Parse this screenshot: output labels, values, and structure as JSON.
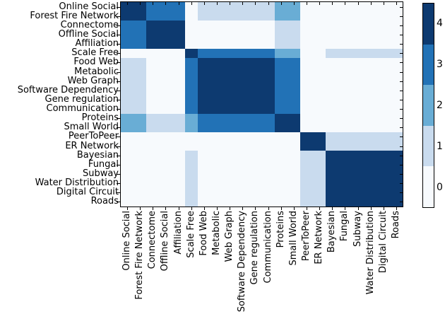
{
  "figure": {
    "background": "#ffffff",
    "axis_color": "#000000"
  },
  "chart_data": {
    "type": "heatmap",
    "title": "",
    "xlabel": "",
    "ylabel": "",
    "grid": false,
    "labels": [
      "Online Social",
      "Forest Fire Network",
      "Connectome",
      "Offline Social",
      "Affiliation",
      "Scale Free",
      "Food Web",
      "Metabolic",
      "Web Graph",
      "Software Dependency",
      "Gene regulation",
      "Communication",
      "Proteins",
      "Small World",
      "PeerToPeer",
      "ER Network",
      "Bayesian",
      "Fungal",
      "Subway",
      "Water Distribution",
      "Digital Circuit",
      "Roads"
    ],
    "value_range": [
      0,
      4
    ],
    "level_colors": {
      "0": "#f7fafd",
      "1": "#c9dbee",
      "2": "#69add5",
      "3": "#2272b6",
      "4": "#0d3a70"
    },
    "matrix": [
      [
        4,
        4,
        3,
        3,
        3,
        0,
        1,
        1,
        1,
        1,
        1,
        1,
        2,
        2,
        0,
        0,
        0,
        0,
        0,
        0,
        0,
        0
      ],
      [
        4,
        4,
        3,
        3,
        3,
        0,
        1,
        1,
        1,
        1,
        1,
        1,
        2,
        2,
        0,
        0,
        0,
        0,
        0,
        0,
        0,
        0
      ],
      [
        3,
        3,
        4,
        4,
        4,
        0,
        0,
        0,
        0,
        0,
        0,
        0,
        1,
        1,
        0,
        0,
        0,
        0,
        0,
        0,
        0,
        0
      ],
      [
        3,
        3,
        4,
        4,
        4,
        0,
        0,
        0,
        0,
        0,
        0,
        0,
        1,
        1,
        0,
        0,
        0,
        0,
        0,
        0,
        0,
        0
      ],
      [
        3,
        3,
        4,
        4,
        4,
        0,
        0,
        0,
        0,
        0,
        0,
        0,
        1,
        1,
        0,
        0,
        0,
        0,
        0,
        0,
        0,
        0
      ],
      [
        0,
        0,
        0,
        0,
        0,
        4,
        3,
        3,
        3,
        3,
        3,
        3,
        2,
        2,
        0,
        0,
        1,
        1,
        1,
        1,
        1,
        1
      ],
      [
        1,
        1,
        0,
        0,
        0,
        3,
        4,
        4,
        4,
        4,
        4,
        4,
        3,
        3,
        0,
        0,
        0,
        0,
        0,
        0,
        0,
        0
      ],
      [
        1,
        1,
        0,
        0,
        0,
        3,
        4,
        4,
        4,
        4,
        4,
        4,
        3,
        3,
        0,
        0,
        0,
        0,
        0,
        0,
        0,
        0
      ],
      [
        1,
        1,
        0,
        0,
        0,
        3,
        4,
        4,
        4,
        4,
        4,
        4,
        3,
        3,
        0,
        0,
        0,
        0,
        0,
        0,
        0,
        0
      ],
      [
        1,
        1,
        0,
        0,
        0,
        3,
        4,
        4,
        4,
        4,
        4,
        4,
        3,
        3,
        0,
        0,
        0,
        0,
        0,
        0,
        0,
        0
      ],
      [
        1,
        1,
        0,
        0,
        0,
        3,
        4,
        4,
        4,
        4,
        4,
        4,
        3,
        3,
        0,
        0,
        0,
        0,
        0,
        0,
        0,
        0
      ],
      [
        1,
        1,
        0,
        0,
        0,
        3,
        4,
        4,
        4,
        4,
        4,
        4,
        3,
        3,
        0,
        0,
        0,
        0,
        0,
        0,
        0,
        0
      ],
      [
        2,
        2,
        1,
        1,
        1,
        2,
        3,
        3,
        3,
        3,
        3,
        3,
        4,
        4,
        0,
        0,
        0,
        0,
        0,
        0,
        0,
        0
      ],
      [
        2,
        2,
        1,
        1,
        1,
        2,
        3,
        3,
        3,
        3,
        3,
        3,
        4,
        4,
        0,
        0,
        0,
        0,
        0,
        0,
        0,
        0
      ],
      [
        0,
        0,
        0,
        0,
        0,
        0,
        0,
        0,
        0,
        0,
        0,
        0,
        0,
        0,
        4,
        4,
        1,
        1,
        1,
        1,
        1,
        1
      ],
      [
        0,
        0,
        0,
        0,
        0,
        0,
        0,
        0,
        0,
        0,
        0,
        0,
        0,
        0,
        4,
        4,
        1,
        1,
        1,
        1,
        1,
        1
      ],
      [
        0,
        0,
        0,
        0,
        0,
        1,
        0,
        0,
        0,
        0,
        0,
        0,
        0,
        0,
        1,
        1,
        4,
        4,
        4,
        4,
        4,
        4
      ],
      [
        0,
        0,
        0,
        0,
        0,
        1,
        0,
        0,
        0,
        0,
        0,
        0,
        0,
        0,
        1,
        1,
        4,
        4,
        4,
        4,
        4,
        4
      ],
      [
        0,
        0,
        0,
        0,
        0,
        1,
        0,
        0,
        0,
        0,
        0,
        0,
        0,
        0,
        1,
        1,
        4,
        4,
        4,
        4,
        4,
        4
      ],
      [
        0,
        0,
        0,
        0,
        0,
        1,
        0,
        0,
        0,
        0,
        0,
        0,
        0,
        0,
        1,
        1,
        4,
        4,
        4,
        4,
        4,
        4
      ],
      [
        0,
        0,
        0,
        0,
        0,
        1,
        0,
        0,
        0,
        0,
        0,
        0,
        0,
        0,
        1,
        1,
        4,
        4,
        4,
        4,
        4,
        4
      ],
      [
        0,
        0,
        0,
        0,
        0,
        1,
        0,
        0,
        0,
        0,
        0,
        0,
        0,
        0,
        1,
        1,
        4,
        4,
        4,
        4,
        4,
        4
      ]
    ],
    "colorbar": {
      "orientation": "vertical",
      "position": "right",
      "tick_labels": [
        "4",
        "3",
        "2",
        "1",
        "0"
      ],
      "segment_colors_top_to_bottom": [
        "#0d3a70",
        "#2272b6",
        "#69add5",
        "#c9dbee",
        "#f7fafd"
      ]
    }
  }
}
